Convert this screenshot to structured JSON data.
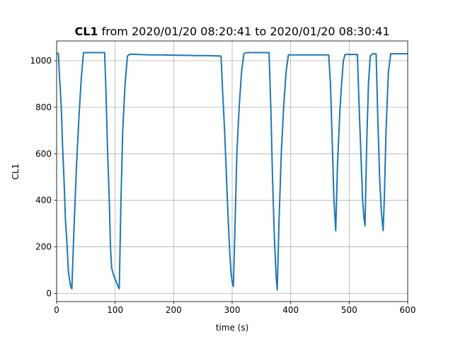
{
  "title": {
    "bold": "CL1",
    "rest": " from 2020/01/20 08:20:41 to 2020/01/20 08:30:41"
  },
  "chart_data": {
    "type": "line",
    "xlabel": "time (s)",
    "ylabel": "CL1",
    "xlim": [
      0,
      600
    ],
    "ylim": [
      -35,
      1085
    ],
    "xticks": [
      0,
      100,
      200,
      300,
      400,
      500,
      600
    ],
    "yticks": [
      0,
      200,
      400,
      600,
      800,
      1000
    ],
    "grid": true,
    "series": [
      {
        "color": "#1f77b4",
        "x": [
          0,
          3,
          5,
          8,
          10,
          13,
          15,
          18,
          20,
          22,
          24,
          26,
          30,
          34,
          38,
          42,
          46,
          60,
          70,
          82,
          84,
          87,
          90,
          92,
          94,
          96,
          98,
          102,
          105,
          107,
          110,
          113,
          117,
          121,
          125,
          128,
          140,
          160,
          180,
          200,
          220,
          240,
          260,
          281,
          284,
          287,
          290,
          293,
          296,
          298,
          300,
          302,
          305,
          308,
          312,
          316,
          320,
          324,
          340,
          355,
          363,
          366,
          369,
          372,
          375,
          377,
          380,
          384,
          388,
          392,
          396,
          400,
          420,
          440,
          460,
          465,
          468,
          471,
          474,
          477,
          480,
          484,
          487,
          490,
          493,
          500,
          510,
          514,
          517,
          520,
          523,
          525,
          527,
          530,
          533,
          536,
          540,
          543,
          546,
          549,
          552,
          555,
          558,
          560,
          563,
          567,
          571,
          574,
          580,
          590,
          600
        ],
        "y": [
          1032,
          1032,
          930,
          800,
          640,
          470,
          320,
          200,
          100,
          60,
          30,
          20,
          300,
          550,
          750,
          920,
          1035,
          1035,
          1035,
          1035,
          900,
          620,
          400,
          200,
          110,
          90,
          75,
          50,
          30,
          20,
          400,
          700,
          900,
          1020,
          1028,
          1028,
          1027,
          1025,
          1025,
          1024,
          1023,
          1022,
          1022,
          1020,
          850,
          700,
          520,
          330,
          170,
          90,
          50,
          30,
          300,
          600,
          800,
          950,
          1030,
          1035,
          1035,
          1035,
          1035,
          800,
          500,
          250,
          80,
          15,
          300,
          600,
          800,
          950,
          1025,
          1025,
          1025,
          1025,
          1025,
          1025,
          900,
          650,
          400,
          270,
          550,
          780,
          900,
          1000,
          1027,
          1027,
          1027,
          1027,
          800,
          600,
          400,
          330,
          290,
          650,
          900,
          1020,
          1030,
          1030,
          1030,
          750,
          500,
          350,
          270,
          400,
          700,
          950,
          1030,
          1030,
          1030,
          1030,
          1030
        ]
      }
    ]
  }
}
